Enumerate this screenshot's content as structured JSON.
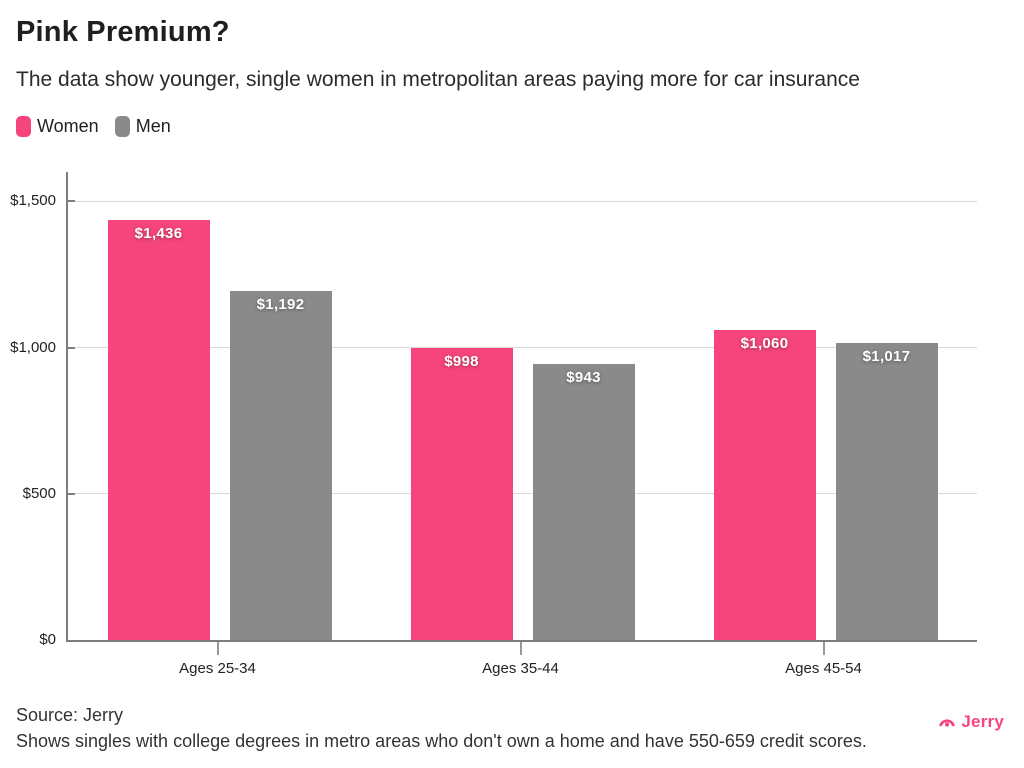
{
  "header": {
    "title": "Pink Premium?",
    "subtitle": "The data show younger, single women in metropolitan areas paying more for car insurance"
  },
  "legend": [
    {
      "label": "Women",
      "color": "#F5457C"
    },
    {
      "label": "Men",
      "color": "#8A8A8A"
    }
  ],
  "chart_data": {
    "type": "bar",
    "title": "Pink Premium?",
    "subtitle": "The data show younger, single women in metropolitan areas paying more for car insurance",
    "categories": [
      "Ages 25-34",
      "Ages 35-44",
      "Ages 45-54"
    ],
    "series": [
      {
        "name": "Women",
        "color": "#F5457C",
        "values": [
          1436,
          998,
          1060
        ],
        "labels": [
          "$1,436",
          "$998",
          "$1,060"
        ]
      },
      {
        "name": "Men",
        "color": "#8A8A8A",
        "values": [
          1192,
          943,
          1017
        ],
        "labels": [
          "$1,192",
          "$943",
          "$1,017"
        ]
      }
    ],
    "yticks": [
      {
        "value": 0,
        "label": "$0"
      },
      {
        "value": 500,
        "label": "$500"
      },
      {
        "value": 1000,
        "label": "$1,000"
      },
      {
        "value": 1500,
        "label": "$1,500"
      }
    ],
    "ymax": 1600,
    "xlabel": "",
    "ylabel": "",
    "grid": "horizontal",
    "legend_position": "top-left",
    "value_labels_position": "inside-top",
    "currency": "USD"
  },
  "footer": {
    "source": "Source: Jerry",
    "note": "Shows singles with college degrees in metro areas who don't own a home and have 550-659 credit scores.",
    "brand": "Jerry"
  },
  "colors": {
    "women": "#F5457C",
    "men": "#8A8A8A",
    "brand_pink": "#F5457C",
    "gridline": "#dadada",
    "axis": "#7d7d7d"
  }
}
